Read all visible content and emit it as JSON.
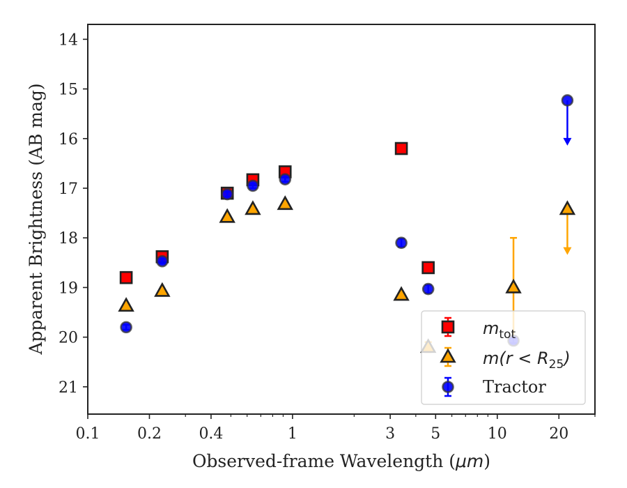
{
  "chart_data": {
    "type": "scatter",
    "xlabel_prefix": "Observed-frame Wavelength (",
    "xlabel_unit": "μm",
    "xlabel_suffix": ")",
    "ylabel": "Apparent Brightness (AB mag)",
    "xscale": "log",
    "xlim": [
      0.1,
      30
    ],
    "ylim": [
      21.55,
      13.7
    ],
    "y_inverted": true,
    "grid": false,
    "legend_position": "lower-right",
    "x_ticks": [
      {
        "value": 0.1,
        "label": "0.1"
      },
      {
        "value": 0.2,
        "label": "0.2"
      },
      {
        "value": 0.4,
        "label": "0.4"
      },
      {
        "value": 1,
        "label": "1"
      },
      {
        "value": 3,
        "label": "3"
      },
      {
        "value": 5,
        "label": "5"
      },
      {
        "value": 10,
        "label": "10"
      },
      {
        "value": 20,
        "label": "20"
      }
    ],
    "x_minor_ticks": [
      0.3,
      0.5,
      0.6,
      0.7,
      0.8,
      0.9,
      2,
      4,
      6,
      7,
      8,
      9,
      30
    ],
    "y_ticks": [
      {
        "value": 14,
        "label": "14"
      },
      {
        "value": 15,
        "label": "15"
      },
      {
        "value": 16,
        "label": "16"
      },
      {
        "value": 17,
        "label": "17"
      },
      {
        "value": 18,
        "label": "18"
      },
      {
        "value": 19,
        "label": "19"
      },
      {
        "value": 20,
        "label": "20"
      },
      {
        "value": 21,
        "label": "21"
      }
    ],
    "series": [
      {
        "legend_base": "m",
        "legend_sub": "tot",
        "marker": "square",
        "color": "#ff0000",
        "edge_color": "#222222",
        "points": [
          {
            "x": 0.154,
            "y": 18.8,
            "err": 0.05
          },
          {
            "x": 0.231,
            "y": 18.38,
            "err": 0.05
          },
          {
            "x": 0.48,
            "y": 17.1,
            "err": 0.05
          },
          {
            "x": 0.64,
            "y": 16.83,
            "err": 0.05
          },
          {
            "x": 0.92,
            "y": 16.67,
            "err": 0.05
          },
          {
            "x": 3.4,
            "y": 16.2,
            "err": 0.03
          },
          {
            "x": 4.6,
            "y": 18.6,
            "err": 0.03
          }
        ]
      },
      {
        "legend_base": "m",
        "legend_expr": "(r < R",
        "legend_sub": "25",
        "legend_tail": ")",
        "marker": "triangle",
        "color": "#ffa500",
        "edge_color": "#222222",
        "points": [
          {
            "x": 0.154,
            "y": 19.37,
            "err": 0.03
          },
          {
            "x": 0.231,
            "y": 19.07,
            "err": 0.03
          },
          {
            "x": 0.48,
            "y": 17.58,
            "err": 0.03
          },
          {
            "x": 0.64,
            "y": 17.42,
            "err": 0.03
          },
          {
            "x": 0.92,
            "y": 17.32,
            "err": 0.03
          },
          {
            "x": 3.4,
            "y": 19.15,
            "err": 0.03
          },
          {
            "x": 4.6,
            "y": 20.2,
            "err": 0.1
          },
          {
            "x": 12.0,
            "y": 19.0,
            "err_up": 1.0,
            "err_down": 1.0
          }
        ],
        "upper_limits": [
          {
            "x": 22.0,
            "y": 17.42,
            "to": 18.3
          }
        ]
      },
      {
        "legend_base": "Tractor",
        "marker": "circle",
        "color": "#0000ff",
        "edge_color": "#222222",
        "points": [
          {
            "x": 0.154,
            "y": 19.8,
            "err": 0.05
          },
          {
            "x": 0.231,
            "y": 18.47,
            "err": 0.05
          },
          {
            "x": 0.48,
            "y": 17.12,
            "err": 0.05
          },
          {
            "x": 0.64,
            "y": 16.95,
            "err": 0.05
          },
          {
            "x": 0.92,
            "y": 16.82,
            "err": 0.05
          },
          {
            "x": 3.4,
            "y": 18.1,
            "err": 0.08
          },
          {
            "x": 4.6,
            "y": 19.03,
            "err": 0.08
          },
          {
            "x": 12.0,
            "y": 20.07,
            "err": 0.05
          }
        ],
        "upper_limits": [
          {
            "x": 22.0,
            "y": 15.23,
            "to": 16.1
          }
        ]
      }
    ]
  }
}
